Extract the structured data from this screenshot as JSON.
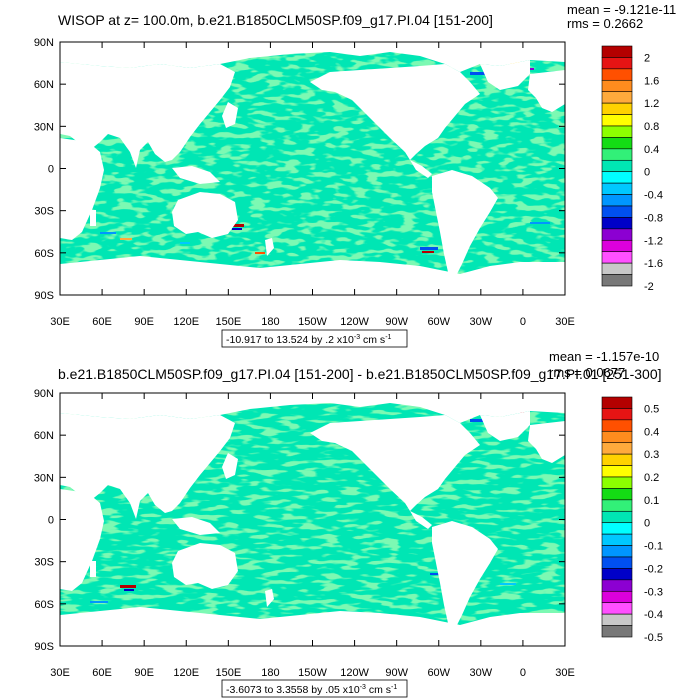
{
  "panels": [
    {
      "title": "WISOP at z= 100.0m, b.e21.B1850CLM50SP.f09_g17.PI.04 [151-200]",
      "mean_text": "mean = -9.121e-11",
      "rms_text": "rms = 0.2662",
      "range_text": "-10.917 to 13.524 by .2 x10",
      "units_exp": "-3",
      "units_rest": " cm s",
      "units_exp2": "-1",
      "colorbar_labels": [
        "2",
        "1.6",
        "1.2",
        "0.8",
        "0.4",
        "0",
        "-0.4",
        "-0.8",
        "-1.2",
        "-1.6",
        "-2"
      ]
    },
    {
      "title": "b.e21.B1850CLM50SP.f09_g17.PI.04 [151-200] - b.e21.B1850CLM50SP.f09_g17.PI.01 [251-300]",
      "mean_text": "mean = -1.157e-10",
      "rms_text": "rms = 0.0677",
      "range_text": "-3.6073 to 3.3558 by .05 x10",
      "units_exp": "-3",
      "units_rest": " cm s",
      "units_exp2": "-1",
      "colorbar_labels": [
        "0.5",
        "0.4",
        "0.3",
        "0.2",
        "0.1",
        "0",
        "-0.1",
        "-0.2",
        "-0.3",
        "-0.4",
        "-0.5"
      ]
    }
  ],
  "lat_labels": [
    "90N",
    "60N",
    "30N",
    "0",
    "30S",
    "60S",
    "90S"
  ],
  "lon_labels": [
    "30E",
    "60E",
    "90E",
    "120E",
    "150E",
    "180",
    "150W",
    "120W",
    "90W",
    "60W",
    "30W",
    "0",
    "30E"
  ],
  "colorbar_colors": [
    "#b40000",
    "#e61414",
    "#ff5000",
    "#ff8c1e",
    "#ffaa3c",
    "#ffd200",
    "#ffff00",
    "#8cff00",
    "#14dc14",
    "#32f078",
    "#00e6b4",
    "#00ffff",
    "#00c8ff",
    "#0096ff",
    "#0050f0",
    "#0000c8",
    "#8c00d2",
    "#dc00dc",
    "#ff50ff",
    "#c8c8c8",
    "#787878"
  ],
  "chart_data": [
    {
      "type": "heatmap",
      "title": "WISOP at z= 100.0m, b.e21.B1850CLM50SP.f09_g17.PI.04 [151-200]",
      "colorbar_levels": [
        2,
        1.6,
        1.2,
        0.8,
        0.4,
        0,
        -0.4,
        -0.8,
        -1.2,
        -1.6,
        -2
      ],
      "data_range": [
        -10.917,
        13.524
      ],
      "contour_interval": 0.2,
      "mean": -9.121e-11,
      "rms": 0.2662,
      "xlim": [
        30,
        390
      ],
      "ylim": [
        -90,
        90
      ]
    },
    {
      "type": "heatmap",
      "title": "b.e21.B1850CLM50SP.f09_g17.PI.04 [151-200] - b.e21.B1850CLM50SP.f09_g17.PI.01 [251-300]",
      "colorbar_levels": [
        0.5,
        0.4,
        0.3,
        0.2,
        0.1,
        0,
        -0.1,
        -0.2,
        -0.3,
        -0.4,
        -0.5
      ],
      "data_range": [
        -3.6073,
        3.3558
      ],
      "contour_interval": 0.05,
      "mean": -1.157e-10,
      "rms": 0.0677,
      "xlim": [
        30,
        390
      ],
      "ylim": [
        -90,
        90
      ]
    }
  ]
}
